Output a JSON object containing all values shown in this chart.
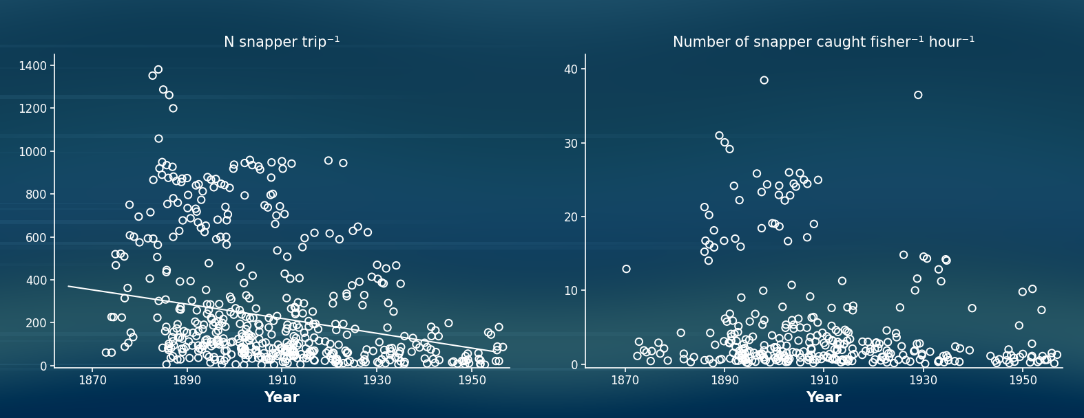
{
  "plot1": {
    "title": "N snapper trip⁻¹",
    "xlabel": "Year",
    "xlim": [
      1862,
      1958
    ],
    "ylim": [
      -10,
      1450
    ],
    "yticks": [
      0,
      200,
      400,
      600,
      800,
      1000,
      1200,
      1400
    ],
    "xticks": [
      1870,
      1890,
      1910,
      1930,
      1950
    ]
  },
  "plot2": {
    "title": "Number of snapper caught fisher⁻¹ hour⁻¹",
    "xlabel": "Year",
    "xlim": [
      1862,
      1958
    ],
    "ylim": [
      -0.5,
      42
    ],
    "yticks": [
      0,
      10,
      20,
      30,
      40
    ],
    "xticks": [
      1870,
      1890,
      1910,
      1930,
      1950
    ]
  },
  "text_color": "#ffffff",
  "circle_color": "#ffffff",
  "circle_facecolor": "none",
  "circle_size": 55,
  "circle_linewidth": 1.4,
  "title_fontsize": 15,
  "tick_fontsize": 12,
  "label_fontsize": 15,
  "trend1_x": [
    1865,
    1910,
    1955
  ],
  "trend1_y": [
    370,
    220,
    65
  ]
}
